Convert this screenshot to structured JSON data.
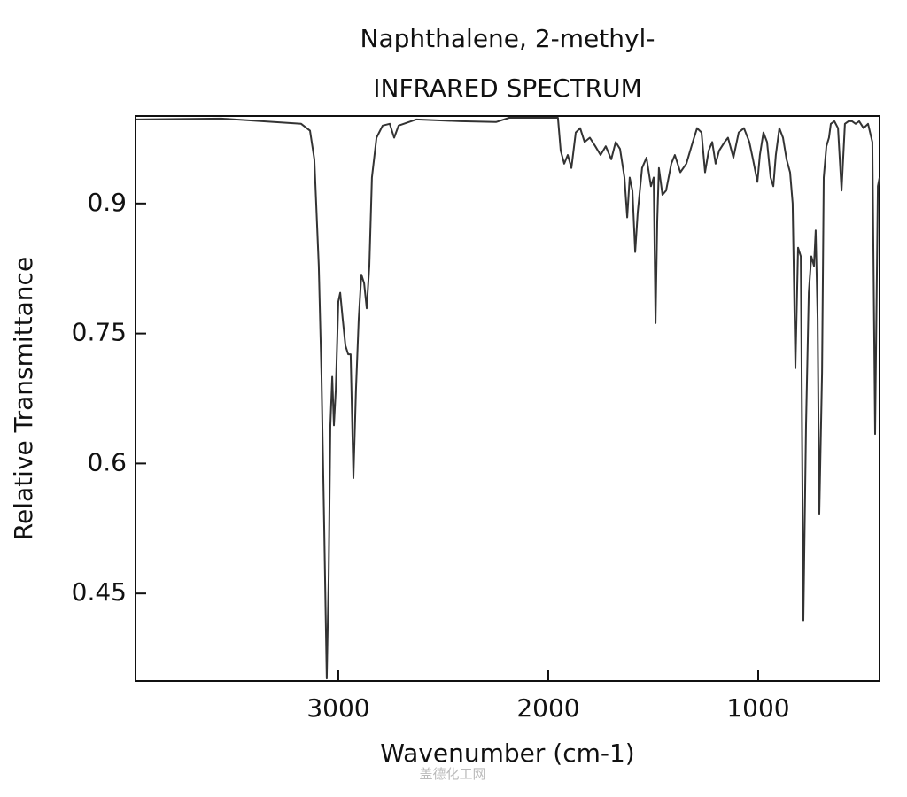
{
  "chart_data": {
    "type": "line",
    "title": "Naphthalene, 2-methyl-",
    "subtitle": "INFRARED SPECTRUM",
    "x_label": "Wavenumber (cm-1)",
    "y_label": "Relative Transmittance",
    "watermark": "盖德化工网",
    "color": "#333333",
    "xlim": [
      3966,
      422
    ],
    "ylim": [
      0.349,
      1.001
    ],
    "xticks": [
      3000,
      2000,
      1000
    ],
    "yticks": [
      0.9,
      0.75,
      0.6,
      0.45
    ],
    "x": [
      3966,
      3557,
      3177,
      3135,
      3114,
      3093,
      3080,
      3067,
      3055,
      3046,
      3038,
      3029,
      3021,
      3012,
      3000,
      2991,
      2979,
      2966,
      2953,
      2941,
      2928,
      2916,
      2903,
      2890,
      2877,
      2865,
      2852,
      2840,
      2818,
      2789,
      2755,
      2734,
      2713,
      2629,
      2418,
      2249,
      2186,
      1954,
      1941,
      1924,
      1907,
      1890,
      1869,
      1848,
      1827,
      1802,
      1776,
      1751,
      1726,
      1700,
      1679,
      1658,
      1637,
      1624,
      1612,
      1599,
      1586,
      1574,
      1553,
      1532,
      1511,
      1498,
      1489,
      1481,
      1473,
      1456,
      1439,
      1414,
      1397,
      1371,
      1342,
      1312,
      1291,
      1270,
      1253,
      1236,
      1219,
      1203,
      1186,
      1160,
      1144,
      1118,
      1093,
      1068,
      1042,
      1025,
      1004,
      992,
      975,
      958,
      941,
      928,
      916,
      899,
      882,
      865,
      848,
      836,
      823,
      810,
      797,
      785,
      772,
      759,
      747,
      734,
      726,
      717,
      709,
      696,
      688,
      675,
      663,
      654,
      637,
      620,
      603,
      587,
      570,
      553,
      536,
      519,
      498,
      477,
      456,
      443,
      430,
      422
    ],
    "values": [
      0.997,
      0.998,
      0.992,
      0.984,
      0.951,
      0.828,
      0.7,
      0.521,
      0.352,
      0.47,
      0.644,
      0.7,
      0.644,
      0.685,
      0.787,
      0.797,
      0.767,
      0.736,
      0.726,
      0.726,
      0.583,
      0.685,
      0.767,
      0.818,
      0.808,
      0.779,
      0.828,
      0.93,
      0.976,
      0.99,
      0.992,
      0.976,
      0.99,
      0.997,
      0.995,
      0.994,
      0.999,
      0.999,
      0.961,
      0.946,
      0.956,
      0.941,
      0.982,
      0.987,
      0.971,
      0.976,
      0.966,
      0.956,
      0.966,
      0.951,
      0.971,
      0.963,
      0.93,
      0.884,
      0.93,
      0.915,
      0.844,
      0.89,
      0.941,
      0.953,
      0.92,
      0.93,
      0.762,
      0.879,
      0.941,
      0.91,
      0.915,
      0.946,
      0.956,
      0.936,
      0.946,
      0.971,
      0.987,
      0.982,
      0.936,
      0.961,
      0.971,
      0.946,
      0.961,
      0.971,
      0.976,
      0.953,
      0.982,
      0.987,
      0.971,
      0.951,
      0.925,
      0.956,
      0.982,
      0.971,
      0.93,
      0.92,
      0.956,
      0.987,
      0.976,
      0.951,
      0.936,
      0.9,
      0.71,
      0.849,
      0.839,
      0.419,
      0.644,
      0.797,
      0.839,
      0.828,
      0.869,
      0.767,
      0.542,
      0.705,
      0.93,
      0.966,
      0.976,
      0.992,
      0.995,
      0.987,
      0.915,
      0.992,
      0.995,
      0.995,
      0.992,
      0.995,
      0.987,
      0.992,
      0.971,
      0.634,
      0.92,
      0.93
    ]
  }
}
